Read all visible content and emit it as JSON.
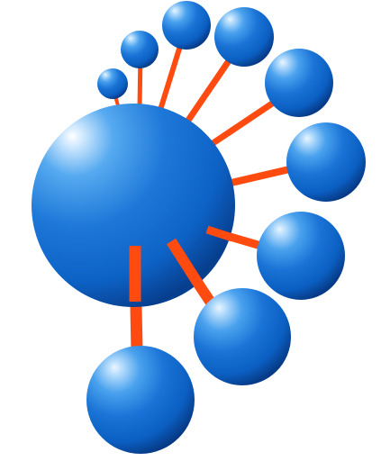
{
  "image": {
    "subject": "network-hub-illustration"
  },
  "colors": {
    "background": "#ffffff",
    "sphere_light": "#eaf6ff",
    "sphere_mid": "#2f8de0",
    "sphere_base": "#0b5fc2",
    "sphere_dark": "#063a86",
    "connector": "#ff4a10"
  }
}
